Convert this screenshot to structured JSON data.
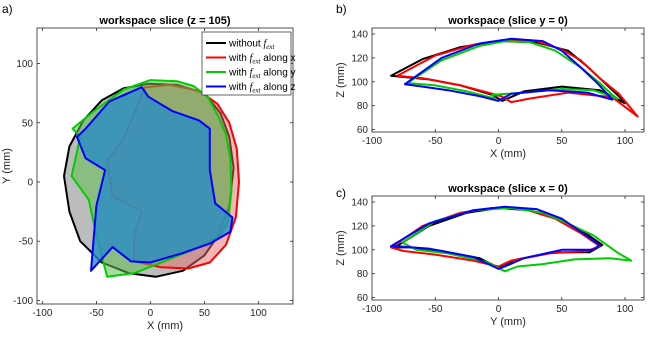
{
  "chart_data": [
    {
      "panel": "a)",
      "type": "area",
      "title": "workspace slice (z = 105)",
      "xlabel": "X (mm)",
      "ylabel": "Y (mm)",
      "xlim": [
        -105,
        132
      ],
      "ylim": [
        -103,
        130
      ],
      "xticks": [
        -100,
        -50,
        0,
        50,
        100
      ],
      "yticks": [
        -100,
        -50,
        0,
        50,
        100
      ],
      "grid": false,
      "legend": {
        "placement": "top-right",
        "entries": [
          {
            "prefix": "without ",
            "sym": "f",
            "sub": "ext",
            "suffix": ""
          },
          {
            "prefix": "with ",
            "sym": "f",
            "sub": "ext",
            "suffix": " along x"
          },
          {
            "prefix": "with ",
            "sym": "f",
            "sub": "ext",
            "suffix": " along y"
          },
          {
            "prefix": "with ",
            "sym": "f",
            "sub": "ext",
            "suffix": " along z"
          }
        ]
      },
      "series": [
        {
          "color": "#000000",
          "fill": "#a6a6a6",
          "fill_opacity": 0.75,
          "points": [
            [
              -2,
              83
            ],
            [
              25,
              82
            ],
            [
              50,
              75
            ],
            [
              65,
              58
            ],
            [
              73,
              38
            ],
            [
              77,
              12
            ],
            [
              73,
              -20
            ],
            [
              63,
              -45
            ],
            [
              50,
              -62
            ],
            [
              30,
              -75
            ],
            [
              5,
              -80
            ],
            [
              -20,
              -77
            ],
            [
              -45,
              -68
            ],
            [
              -65,
              -50
            ],
            [
              -75,
              -25
            ],
            [
              -80,
              5
            ],
            [
              -75,
              30
            ],
            [
              -62,
              52
            ],
            [
              -45,
              69
            ],
            [
              -25,
              79
            ]
          ]
        },
        {
          "color": "#ff0000",
          "fill": "#e26b6b",
          "fill_opacity": 0.5,
          "points": [
            [
              -5,
              80
            ],
            [
              18,
              82
            ],
            [
              45,
              77
            ],
            [
              62,
              66
            ],
            [
              73,
              50
            ],
            [
              80,
              28
            ],
            [
              82,
              0
            ],
            [
              79,
              -30
            ],
            [
              70,
              -53
            ],
            [
              55,
              -68
            ],
            [
              35,
              -73
            ],
            [
              10,
              -72
            ],
            [
              -15,
              -67
            ],
            [
              -15,
              -45
            ],
            [
              -8,
              -25
            ],
            [
              -35,
              -12
            ],
            [
              -40,
              18
            ],
            [
              -25,
              36
            ]
          ]
        },
        {
          "color": "#00cc00",
          "fill": "#5fbf4f",
          "fill_opacity": 0.55,
          "points": [
            [
              -52,
              60
            ],
            [
              -25,
              78
            ],
            [
              0,
              86
            ],
            [
              25,
              85
            ],
            [
              40,
              81
            ],
            [
              53,
              72
            ],
            [
              63,
              55
            ],
            [
              70,
              40
            ],
            [
              74,
              20
            ],
            [
              75,
              -8
            ],
            [
              72,
              -33
            ],
            [
              65,
              -45
            ],
            [
              40,
              -57
            ],
            [
              10,
              -68
            ],
            [
              -15,
              -77
            ],
            [
              -40,
              -80
            ],
            [
              -50,
              -45
            ],
            [
              -57,
              -15
            ],
            [
              -73,
              5
            ],
            [
              -65,
              38
            ],
            [
              -72,
              45
            ]
          ]
        },
        {
          "color": "#0000ff",
          "fill": "#2a8cc6",
          "fill_opacity": 0.8,
          "points": [
            [
              -8,
              80
            ],
            [
              -2,
              72
            ],
            [
              20,
              60
            ],
            [
              45,
              52
            ],
            [
              55,
              45
            ],
            [
              55,
              10
            ],
            [
              60,
              -18
            ],
            [
              72,
              -27
            ],
            [
              76,
              -30
            ],
            [
              74,
              -42
            ],
            [
              55,
              -52
            ],
            [
              30,
              -60
            ],
            [
              0,
              -68
            ],
            [
              -18,
              -67
            ],
            [
              -35,
              -55
            ],
            [
              -55,
              -75
            ],
            [
              -50,
              -20
            ],
            [
              -42,
              10
            ],
            [
              -60,
              20
            ],
            [
              -68,
              38
            ],
            [
              -60,
              45
            ],
            [
              -38,
              68
            ]
          ]
        }
      ]
    },
    {
      "panel": "b)",
      "type": "line",
      "title": "workspace (slice y = 0)",
      "xlabel": "X (mm)",
      "ylabel": "Z (mm)",
      "xlim": [
        -100,
        115
      ],
      "ylim": [
        58,
        145
      ],
      "xticks": [
        -100,
        -50,
        0,
        50,
        100
      ],
      "yticks": [
        60,
        80,
        100,
        120,
        140
      ],
      "grid": false,
      "series": [
        {
          "color": "#000000",
          "points": [
            [
              -85,
              105
            ],
            [
              -60,
              119
            ],
            [
              -30,
              129
            ],
            [
              0,
              134
            ],
            [
              30,
              133
            ],
            [
              55,
              126
            ],
            [
              70,
              113
            ],
            [
              82,
              101
            ],
            [
              95,
              88
            ],
            [
              100,
              82
            ],
            [
              80,
              93
            ],
            [
              50,
              96
            ],
            [
              20,
              92
            ],
            [
              3,
              84
            ],
            [
              -5,
              89
            ],
            [
              -30,
              97
            ],
            [
              -55,
              102
            ],
            [
              -85,
              105
            ]
          ]
        },
        {
          "color": "#ff0000",
          "points": [
            [
              -80,
              105
            ],
            [
              -50,
              122
            ],
            [
              -20,
              131
            ],
            [
              5,
              135
            ],
            [
              30,
              134
            ],
            [
              50,
              127
            ],
            [
              65,
              118
            ],
            [
              80,
              103
            ],
            [
              95,
              90
            ],
            [
              110,
              71
            ],
            [
              90,
              87
            ],
            [
              55,
              91
            ],
            [
              25,
              86
            ],
            [
              10,
              83
            ],
            [
              2,
              88
            ],
            [
              -30,
              97
            ],
            [
              -60,
              103
            ],
            [
              -80,
              105
            ]
          ]
        },
        {
          "color": "#00cc00",
          "points": [
            [
              -72,
              99
            ],
            [
              -45,
              118
            ],
            [
              -15,
              130
            ],
            [
              5,
              134
            ],
            [
              25,
              133
            ],
            [
              45,
              126
            ],
            [
              65,
              112
            ],
            [
              80,
              99
            ],
            [
              90,
              89
            ],
            [
              94,
              86
            ],
            [
              75,
              93
            ],
            [
              50,
              94
            ],
            [
              20,
              91
            ],
            [
              -5,
              89
            ],
            [
              -3,
              86
            ],
            [
              -25,
              92
            ],
            [
              -50,
              97
            ],
            [
              -72,
              99
            ]
          ]
        },
        {
          "color": "#0000ff",
          "points": [
            [
              -74,
              98
            ],
            [
              -45,
              120
            ],
            [
              -15,
              132
            ],
            [
              10,
              136
            ],
            [
              35,
              134
            ],
            [
              50,
              126
            ],
            [
              65,
              112
            ],
            [
              78,
              99
            ],
            [
              85,
              91
            ],
            [
              90,
              85
            ],
            [
              70,
              91
            ],
            [
              40,
              93
            ],
            [
              10,
              90
            ],
            [
              0,
              84
            ],
            [
              -15,
              88
            ],
            [
              -40,
              93
            ],
            [
              -60,
              96
            ],
            [
              -74,
              98
            ]
          ]
        }
      ]
    },
    {
      "panel": "c)",
      "type": "line",
      "title": "workspace (slice x = 0)",
      "xlabel": "Y (mm)",
      "ylabel": "Z (mm)",
      "xlim": [
        -100,
        115
      ],
      "ylim": [
        58,
        145
      ],
      "xticks": [
        -100,
        -50,
        0,
        50,
        100
      ],
      "yticks": [
        60,
        80,
        100,
        120,
        140
      ],
      "grid": false,
      "series": [
        {
          "color": "#000000",
          "points": [
            [
              -82,
              102
            ],
            [
              -55,
              120
            ],
            [
              -25,
              131
            ],
            [
              0,
              135
            ],
            [
              25,
              133
            ],
            [
              50,
              125
            ],
            [
              70,
              113
            ],
            [
              82,
              104
            ],
            [
              72,
              98
            ],
            [
              45,
              98
            ],
            [
              15,
              92
            ],
            [
              0,
              85
            ],
            [
              -15,
              93
            ],
            [
              -45,
              99
            ],
            [
              -70,
              102
            ],
            [
              -82,
              102
            ]
          ]
        },
        {
          "color": "#ff0000",
          "points": [
            [
              -85,
              102
            ],
            [
              -60,
              120
            ],
            [
              -30,
              131
            ],
            [
              -5,
              135
            ],
            [
              20,
              134
            ],
            [
              45,
              126
            ],
            [
              65,
              114
            ],
            [
              80,
              103
            ],
            [
              70,
              99
            ],
            [
              40,
              97
            ],
            [
              10,
              91
            ],
            [
              0,
              86
            ],
            [
              -20,
              91
            ],
            [
              -50,
              96
            ],
            [
              -75,
              99
            ],
            [
              -85,
              102
            ]
          ]
        },
        {
          "color": "#00cc00",
          "points": [
            [
              -76,
              106
            ],
            [
              -50,
              124
            ],
            [
              -20,
              133
            ],
            [
              10,
              135
            ],
            [
              35,
              131
            ],
            [
              55,
              122
            ],
            [
              75,
              112
            ],
            [
              95,
              97
            ],
            [
              105,
              91
            ],
            [
              88,
              93
            ],
            [
              60,
              92
            ],
            [
              35,
              88
            ],
            [
              15,
              86
            ],
            [
              5,
              82
            ],
            [
              -10,
              90
            ],
            [
              -40,
              97
            ],
            [
              -65,
              100
            ],
            [
              -76,
              106
            ]
          ]
        },
        {
          "color": "#0000ff",
          "points": [
            [
              -85,
              103
            ],
            [
              -55,
              122
            ],
            [
              -20,
              133
            ],
            [
              5,
              136
            ],
            [
              30,
              134
            ],
            [
              50,
              126
            ],
            [
              68,
              113
            ],
            [
              80,
              104
            ],
            [
              75,
              100
            ],
            [
              50,
              100
            ],
            [
              20,
              93
            ],
            [
              5,
              86
            ],
            [
              0,
              84
            ],
            [
              -20,
              94
            ],
            [
              -55,
              101
            ],
            [
              -80,
              103
            ],
            [
              -85,
              103
            ]
          ]
        }
      ]
    }
  ]
}
